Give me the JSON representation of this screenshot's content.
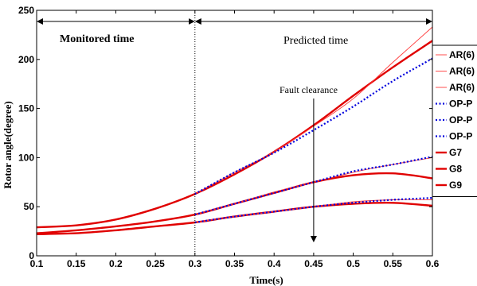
{
  "chart_data": {
    "type": "line",
    "xlabel": "Time(s)",
    "ylabel": "Rotor angle(degree)",
    "xlim": [
      0.1,
      0.6
    ],
    "ylim": [
      0,
      250
    ],
    "xticks": [
      0.1,
      0.15,
      0.2,
      0.25,
      0.3,
      0.35,
      0.4,
      0.45,
      0.5,
      0.55,
      0.6
    ],
    "xtick_labels": [
      "0.1",
      "0.15",
      "0.2",
      "0.25",
      "0.3",
      "0.35",
      "0.4",
      "0.45",
      "0.5",
      "0.55",
      "0.6"
    ],
    "yticks": [
      0,
      50,
      100,
      150,
      200,
      250
    ],
    "ytick_labels": [
      "0",
      "50",
      "100",
      "150",
      "200",
      "250"
    ],
    "grid": false,
    "legend_position": "right",
    "annotations": {
      "monitored": "Monitored time",
      "predicted": "Predicted time",
      "fault": "Fault clearance",
      "boundary_x": 0.3,
      "fault_x": 0.45
    },
    "series": [
      {
        "name": "AR(6)",
        "style": "thin",
        "color": "#ff3a3a",
        "x": [
          0.3,
          0.35,
          0.4,
          0.45,
          0.5,
          0.55,
          0.6
        ],
        "y": [
          63,
          85,
          106,
          132,
          160,
          197,
          233
        ]
      },
      {
        "name": "AR(6)",
        "style": "thin",
        "color": "#ff3a3a",
        "x": [
          0.3,
          0.35,
          0.4,
          0.45,
          0.5,
          0.55,
          0.6
        ],
        "y": [
          42,
          53,
          65,
          75,
          85,
          93,
          100
        ]
      },
      {
        "name": "AR(6)",
        "style": "thin",
        "color": "#ff3a3a",
        "x": [
          0.3,
          0.35,
          0.4,
          0.45,
          0.5,
          0.55,
          0.6
        ],
        "y": [
          34,
          40,
          45,
          50,
          55,
          57,
          57
        ]
      },
      {
        "name": "OP-P",
        "style": "dotted",
        "color": "#0000dd",
        "x": [
          0.3,
          0.35,
          0.4,
          0.45,
          0.5,
          0.55,
          0.6
        ],
        "y": [
          63,
          85,
          105,
          128,
          152,
          178,
          201
        ]
      },
      {
        "name": "OP-P",
        "style": "dotted",
        "color": "#0000dd",
        "x": [
          0.3,
          0.35,
          0.4,
          0.45,
          0.5,
          0.55,
          0.6
        ],
        "y": [
          42,
          53,
          64,
          75,
          86,
          93,
          101
        ]
      },
      {
        "name": "OP-P",
        "style": "dotted",
        "color": "#0000dd",
        "x": [
          0.3,
          0.35,
          0.4,
          0.45,
          0.5,
          0.55,
          0.6
        ],
        "y": [
          34,
          40,
          45,
          50,
          54,
          57,
          59
        ]
      },
      {
        "name": "G7",
        "style": "thick",
        "color": "#e00000",
        "x": [
          0.1,
          0.15,
          0.2,
          0.25,
          0.3,
          0.35,
          0.4,
          0.45,
          0.5,
          0.55,
          0.6
        ],
        "y": [
          29,
          31,
          37,
          48,
          63,
          83,
          106,
          133,
          163,
          192,
          219
        ]
      },
      {
        "name": "G8",
        "style": "thick",
        "color": "#e00000",
        "x": [
          0.1,
          0.15,
          0.2,
          0.25,
          0.3,
          0.35,
          0.4,
          0.45,
          0.5,
          0.55,
          0.6
        ],
        "y": [
          23,
          26,
          30,
          35,
          42,
          53,
          64,
          75,
          82,
          84,
          79
        ]
      },
      {
        "name": "G9",
        "style": "thick",
        "color": "#e00000",
        "x": [
          0.1,
          0.15,
          0.2,
          0.25,
          0.3,
          0.35,
          0.4,
          0.45,
          0.5,
          0.55,
          0.6
        ],
        "y": [
          22,
          23,
          26,
          30,
          34,
          40,
          45,
          50,
          53,
          54,
          51
        ]
      }
    ]
  }
}
